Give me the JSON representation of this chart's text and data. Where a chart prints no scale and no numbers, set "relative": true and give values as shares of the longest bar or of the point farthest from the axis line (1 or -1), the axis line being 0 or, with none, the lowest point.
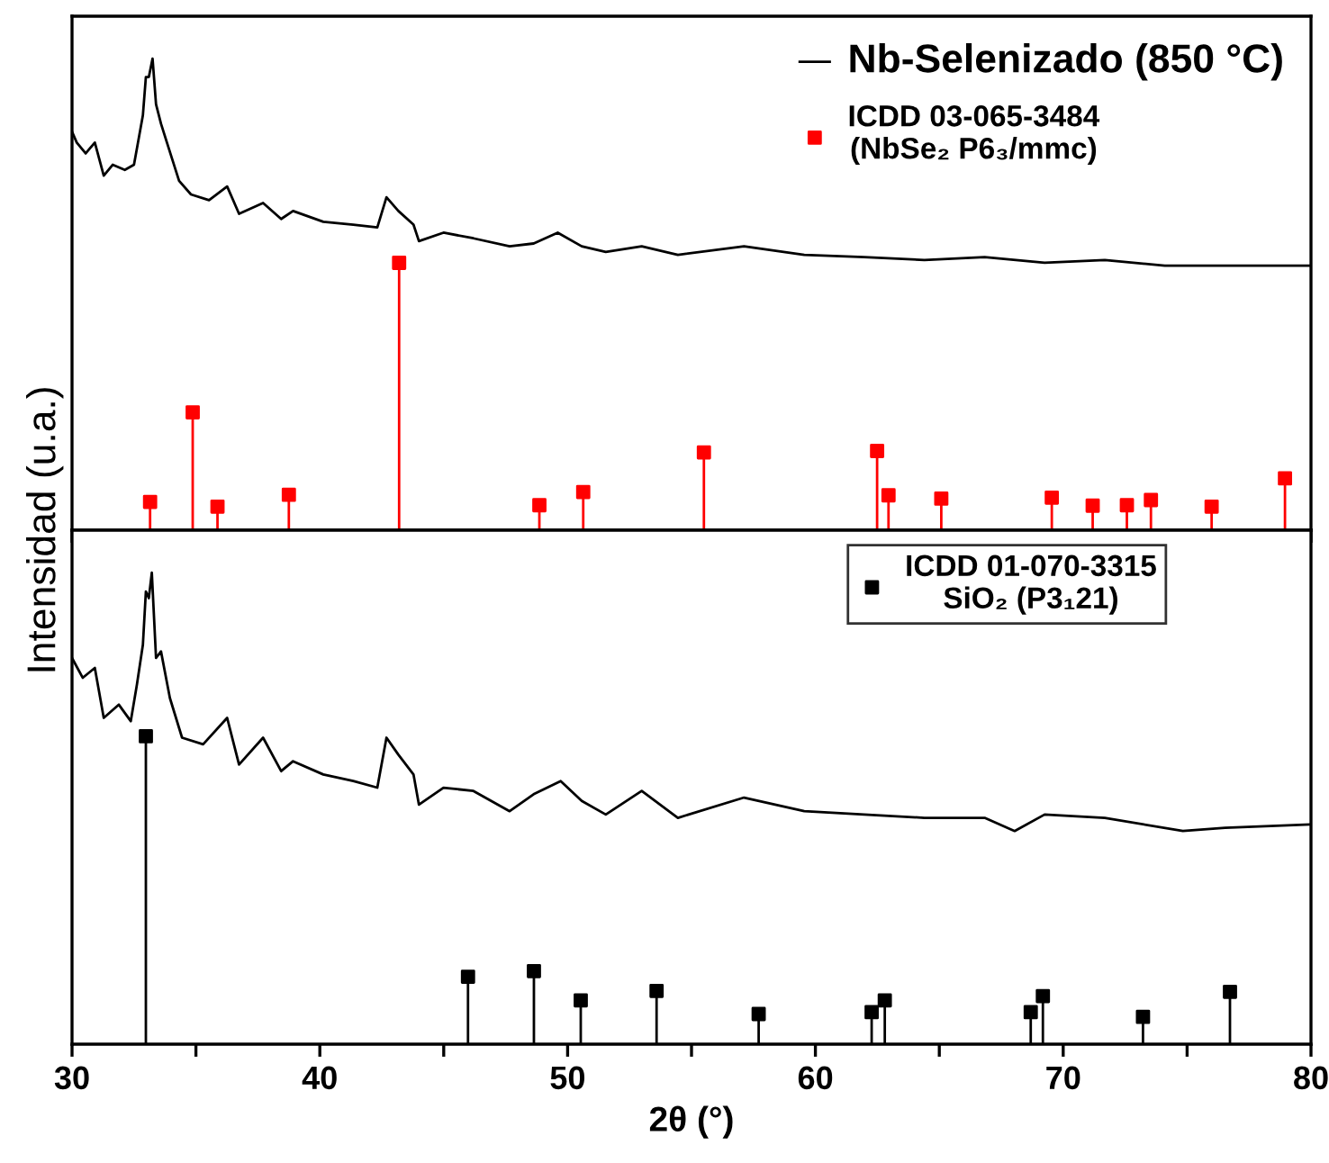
{
  "chart_data": [
    {
      "type": "line",
      "ylabel": "Intensidad (u.a.)",
      "relative": true,
      "xlim": [
        30,
        80
      ],
      "xticks": [
        30,
        {
          "value": 35,
          "label": null
        },
        40,
        {
          "value": 45,
          "label": null
        },
        50,
        {
          "value": 55,
          "label": null
        },
        60,
        {
          "value": 65,
          "label": null
        },
        70,
        {
          "value": 75,
          "label": null
        },
        80
      ],
      "tick_labels": false,
      "legend": "top right",
      "grid": false,
      "series": [
        {
          "name": "Nb-Selenizado (850 °C)",
          "type": "line",
          "color": "#000000",
          "marker": "none",
          "line_style": "solid",
          "x": [
            30.0,
            30.19,
            30.55,
            30.92,
            31.28,
            31.64,
            32.13,
            32.5,
            32.62,
            32.86,
            32.98,
            33.1,
            33.25,
            33.39,
            33.59,
            33.83,
            34.32,
            34.8,
            35.53,
            36.26,
            36.74,
            37.71,
            38.44,
            38.92,
            40.14,
            41.35,
            42.32,
            42.69,
            43.17,
            43.78,
            44.0,
            44.99,
            46.2,
            47.66,
            48.63,
            49.6,
            50.57,
            51.54,
            52.99,
            54.45,
            57.12,
            59.55,
            61.97,
            64.4,
            66.83,
            69.25,
            71.68,
            74.1,
            76.53,
            79.93
          ],
          "values": [
            0.845,
            0.822,
            0.799,
            0.822,
            0.752,
            0.775,
            0.764,
            0.775,
            0.81,
            0.88,
            0.961,
            0.961,
            1.0,
            0.903,
            0.862,
            0.822,
            0.741,
            0.712,
            0.7,
            0.729,
            0.671,
            0.694,
            0.66,
            0.677,
            0.654,
            0.648,
            0.642,
            0.706,
            0.677,
            0.648,
            0.613,
            0.631,
            0.619,
            0.602,
            0.608,
            0.631,
            0.602,
            0.59,
            0.602,
            0.584,
            0.602,
            0.584,
            0.579,
            0.573,
            0.579,
            0.567,
            0.573,
            0.561,
            0.561,
            0.561
          ]
        },
        {
          "name": "ICDD 03-065-3484\n(NbSe₂ P6₃/mmc)",
          "type": "lollipop",
          "color": "#ff0000",
          "marker": "square",
          "x": [
            33.15,
            34.87,
            35.87,
            38.75,
            43.2,
            48.86,
            50.63,
            55.5,
            62.49,
            62.95,
            65.08,
            69.54,
            71.19,
            72.57,
            73.54,
            75.99,
            78.95
          ],
          "values": [
            0.06,
            0.25,
            0.05,
            0.075,
            0.567,
            0.053,
            0.081,
            0.165,
            0.168,
            0.074,
            0.067,
            0.069,
            0.052,
            0.053,
            0.064,
            0.05,
            0.11
          ]
        }
      ]
    },
    {
      "type": "line",
      "xlabel": "2θ (°)",
      "relative": true,
      "xlim": [
        30,
        80
      ],
      "xticks": [
        30,
        {
          "value": 35,
          "label": null
        },
        40,
        {
          "value": 45,
          "label": null
        },
        50,
        {
          "value": 55,
          "label": null
        },
        60,
        {
          "value": 65,
          "label": null
        },
        70,
        {
          "value": 75,
          "label": null
        },
        80
      ],
      "tick_labels": "x",
      "legend": "top right",
      "grid": false,
      "series": [
        {
          "type": "line",
          "color": "#000000",
          "marker": "none",
          "line_style": "solid",
          "x": [
            30.0,
            30.43,
            30.92,
            31.28,
            31.89,
            32.37,
            32.62,
            32.86,
            32.98,
            33.1,
            33.22,
            33.39,
            33.59,
            33.95,
            34.44,
            35.29,
            36.26,
            36.74,
            37.71,
            38.44,
            38.92,
            40.14,
            41.35,
            42.32,
            42.69,
            43.17,
            43.78,
            44.0,
            44.99,
            46.2,
            47.66,
            48.63,
            49.72,
            50.57,
            51.54,
            52.99,
            54.45,
            57.12,
            59.55,
            61.97,
            64.4,
            66.83,
            68.04,
            69.25,
            71.68,
            74.83,
            76.53,
            79.93
          ],
          "values": [
            0.819,
            0.777,
            0.798,
            0.692,
            0.72,
            0.685,
            0.763,
            0.847,
            0.96,
            0.946,
            1.0,
            0.819,
            0.833,
            0.734,
            0.65,
            0.636,
            0.692,
            0.593,
            0.65,
            0.579,
            0.6,
            0.572,
            0.558,
            0.544,
            0.65,
            0.614,
            0.572,
            0.508,
            0.544,
            0.537,
            0.494,
            0.53,
            0.558,
            0.516,
            0.487,
            0.537,
            0.48,
            0.523,
            0.494,
            0.487,
            0.48,
            0.48,
            0.452,
            0.487,
            0.48,
            0.452,
            0.459,
            0.466
          ]
        },
        {
          "name": "ICDD 01-070-3315\nSiO₂ (P3₁21)",
          "type": "lollipop",
          "color": "#000000",
          "marker": "square",
          "x": [
            32.98,
            45.98,
            48.64,
            50.53,
            53.59,
            57.71,
            62.27,
            62.8,
            68.69,
            69.18,
            73.22,
            76.73
          ],
          "values": [
            0.653,
            0.143,
            0.155,
            0.093,
            0.113,
            0.064,
            0.068,
            0.093,
            0.068,
            0.102,
            0.058,
            0.111
          ]
        }
      ]
    }
  ]
}
